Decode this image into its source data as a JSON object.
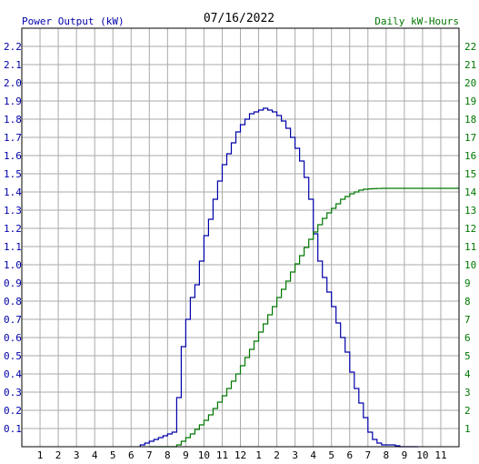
{
  "chart_data": {
    "type": "line",
    "title": "07/16/2022",
    "ylabel": "Power Output (kW)",
    "y2label": "Daily kW-Hours",
    "x_tick_labels": [
      "1",
      "2",
      "3",
      "4",
      "5",
      "6",
      "7",
      "8",
      "9",
      "10",
      "11",
      "12",
      "1",
      "2",
      "3",
      "4",
      "5",
      "6",
      "7",
      "8",
      "9",
      "10",
      "11"
    ],
    "y_ticks": [
      "0.1",
      "0.2",
      "0.3",
      "0.4",
      "0.5",
      "0.6",
      "0.7",
      "0.8",
      "0.9",
      "1.0",
      "1.1",
      "1.2",
      "1.3",
      "1.4",
      "1.5",
      "1.6",
      "1.7",
      "1.8",
      "1.9",
      "2.0",
      "2.1",
      "2.2"
    ],
    "y2_ticks": [
      "1",
      "2",
      "3",
      "4",
      "5",
      "6",
      "7",
      "8",
      "9",
      "10",
      "11",
      "12",
      "13",
      "14",
      "15",
      "16",
      "17",
      "18",
      "19",
      "20",
      "21",
      "22"
    ],
    "xlim": [
      0,
      24
    ],
    "ylim": [
      0,
      2.3
    ],
    "y2lim": [
      0,
      23
    ],
    "grid": true,
    "colors": {
      "power": "#0000aa",
      "energy": "#007700",
      "grid": "#aaaaaa",
      "frame": "#000000"
    },
    "series": [
      {
        "name": "Power Output (kW)",
        "axis": "left",
        "x": [
          6.75,
          7.0,
          7.25,
          7.5,
          7.75,
          8.0,
          8.25,
          8.5,
          8.75,
          9.0,
          9.25,
          9.5,
          9.75,
          10.0,
          10.25,
          10.5,
          10.75,
          11.0,
          11.25,
          11.5,
          11.75,
          12.0,
          12.25,
          12.5,
          12.75,
          13.0,
          13.25,
          13.5,
          13.75,
          14.0,
          14.25,
          14.5,
          14.75,
          15.0,
          15.25,
          15.5,
          15.75,
          16.0,
          16.25,
          16.5,
          16.75,
          17.0,
          17.25,
          17.5,
          17.75,
          18.0,
          18.25,
          18.5,
          18.75,
          19.0,
          19.25,
          19.5,
          19.75,
          20.0,
          20.25,
          20.5,
          20.75,
          21.0,
          21.25,
          21.5,
          21.75
        ],
        "values": [
          0.01,
          0.02,
          0.03,
          0.04,
          0.05,
          0.06,
          0.07,
          0.08,
          0.27,
          0.55,
          0.7,
          0.82,
          0.89,
          1.02,
          1.16,
          1.25,
          1.36,
          1.46,
          1.55,
          1.61,
          1.67,
          1.73,
          1.77,
          1.8,
          1.83,
          1.84,
          1.85,
          1.86,
          1.85,
          1.84,
          1.82,
          1.79,
          1.75,
          1.7,
          1.64,
          1.57,
          1.48,
          1.36,
          1.17,
          1.02,
          0.93,
          0.85,
          0.77,
          0.68,
          0.6,
          0.52,
          0.41,
          0.32,
          0.24,
          0.16,
          0.08,
          0.04,
          0.02,
          0.01,
          0.01,
          0.01,
          0.005,
          0.0,
          0.0,
          0.0,
          0.0
        ]
      },
      {
        "name": "Daily kW-Hours",
        "axis": "right",
        "x": [
          7.25,
          7.5,
          7.75,
          8.0,
          8.25,
          8.5,
          8.75,
          9.0,
          9.25,
          9.5,
          9.75,
          10.0,
          10.25,
          10.5,
          10.75,
          11.0,
          11.25,
          11.5,
          11.75,
          12.0,
          12.25,
          12.5,
          12.75,
          13.0,
          13.25,
          13.5,
          13.75,
          14.0,
          14.25,
          14.5,
          14.75,
          15.0,
          15.25,
          15.5,
          15.75,
          16.0,
          16.25,
          16.5,
          16.75,
          17.0,
          17.25,
          17.5,
          17.75,
          18.0,
          18.25,
          18.5,
          18.75,
          19.0,
          19.25,
          19.5,
          19.75,
          20.0,
          20.5,
          21.0,
          22.0,
          23.0,
          24.0
        ],
        "values": [
          0.0,
          0.0,
          0.0,
          0.0,
          0.0,
          0.0,
          0.1,
          0.3,
          0.5,
          0.7,
          0.95,
          1.2,
          1.45,
          1.75,
          2.1,
          2.45,
          2.8,
          3.2,
          3.6,
          4.0,
          4.45,
          4.9,
          5.35,
          5.8,
          6.3,
          6.75,
          7.25,
          7.7,
          8.2,
          8.65,
          9.1,
          9.6,
          10.05,
          10.5,
          10.95,
          11.4,
          11.8,
          12.2,
          12.55,
          12.85,
          13.1,
          13.35,
          13.6,
          13.75,
          13.9,
          14.0,
          14.1,
          14.15,
          14.17,
          14.18,
          14.19,
          14.2,
          14.2,
          14.2,
          14.2,
          14.2,
          14.2
        ]
      }
    ]
  }
}
